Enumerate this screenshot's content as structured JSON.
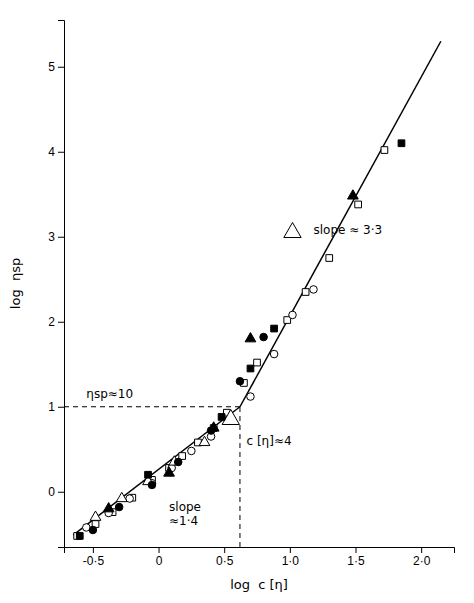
{
  "chart_data": {
    "type": "scatter",
    "xlabel": "log  c [η]",
    "ylabel": "log  ηsp",
    "xlim": [
      -0.72,
      2.25
    ],
    "ylim": [
      -0.65,
      5.55
    ],
    "xticks": [
      {
        "value": -0.5,
        "label": "-0·5"
      },
      0,
      {
        "value": 0.5,
        "label": "0·5"
      },
      {
        "value": 1.0,
        "label": "1·0"
      },
      {
        "value": 1.5,
        "label": "1·5"
      },
      {
        "value": 2.0,
        "label": "2·0"
      }
    ],
    "yticks": [
      0,
      1,
      2,
      3,
      4,
      5
    ],
    "grid": false,
    "color": "#000000",
    "series": [
      {
        "type": "line",
        "line_style": "solid",
        "x": [
          -0.65,
          0.62
        ],
        "values": [
          -0.51,
          1.0
        ]
      },
      {
        "type": "line",
        "line_style": "solid",
        "x": [
          0.62,
          2.15
        ],
        "values": [
          1.0,
          5.3
        ]
      },
      {
        "type": "line",
        "line_style": "dashed",
        "x": [
          -0.72,
          0.62
        ],
        "values": [
          1.0,
          1.0
        ]
      },
      {
        "type": "line",
        "line_style": "dashed",
        "x": [
          0.62,
          0.62
        ],
        "values": [
          -0.65,
          1.0
        ]
      },
      {
        "type": "scatter",
        "marker": "square-open",
        "x": [
          -0.62,
          -0.48,
          -0.35,
          -0.2,
          -0.05,
          0.08,
          0.18,
          0.3,
          0.42,
          0.52,
          0.65,
          0.75,
          0.98,
          1.12,
          1.3,
          1.52,
          1.72
        ],
        "values": [
          -0.52,
          -0.38,
          -0.24,
          -0.07,
          0.14,
          0.28,
          0.42,
          0.58,
          0.75,
          0.93,
          1.28,
          1.52,
          2.02,
          2.35,
          2.75,
          3.38,
          4.02
        ]
      },
      {
        "type": "scatter",
        "marker": "circle-open",
        "x": [
          -0.55,
          -0.38,
          -0.22,
          -0.05,
          0.1,
          0.25,
          0.4,
          0.55,
          0.7,
          0.88,
          1.02,
          1.18
        ],
        "values": [
          -0.42,
          -0.25,
          -0.08,
          0.1,
          0.28,
          0.48,
          0.65,
          0.85,
          1.12,
          1.62,
          2.08,
          2.38
        ]
      },
      {
        "type": "scatter",
        "marker": "triangle-open",
        "x": [
          -0.48,
          -0.28,
          -0.08,
          0.12,
          0.35,
          0.55
        ],
        "values": [
          -0.3,
          -0.08,
          0.12,
          0.35,
          0.58,
          0.85
        ]
      },
      {
        "type": "scatter",
        "marker": "triangle-open-large",
        "x": [
          0.55,
          1.02
        ],
        "values": [
          0.85,
          3.05
        ]
      },
      {
        "type": "scatter",
        "marker": "square",
        "x": [
          -0.6,
          -0.08,
          0.48,
          0.7,
          0.88,
          1.85
        ],
        "values": [
          -0.52,
          0.2,
          0.88,
          1.45,
          1.92,
          4.1
        ]
      },
      {
        "type": "scatter",
        "marker": "circle",
        "x": [
          -0.5,
          -0.3,
          -0.05,
          0.15,
          0.4,
          0.62,
          0.8
        ],
        "values": [
          -0.45,
          -0.18,
          0.08,
          0.35,
          0.72,
          1.3,
          1.82
        ]
      },
      {
        "type": "scatter",
        "marker": "triangle",
        "x": [
          -0.38,
          0.08,
          0.42,
          0.7,
          1.48
        ],
        "values": [
          -0.2,
          0.22,
          0.75,
          1.8,
          3.48
        ]
      }
    ],
    "annotations": [
      {
        "text": "slope\n≈1·4",
        "x": 0.08,
        "y": -0.08
      },
      {
        "text": "slope ≈ 3·3",
        "x": 1.18,
        "y": 3.0
      },
      {
        "text": "ηsp≈10",
        "x": -0.55,
        "y": 1.08
      },
      {
        "text": "c [η]≈4",
        "x": 0.67,
        "y": 0.52
      }
    ]
  }
}
